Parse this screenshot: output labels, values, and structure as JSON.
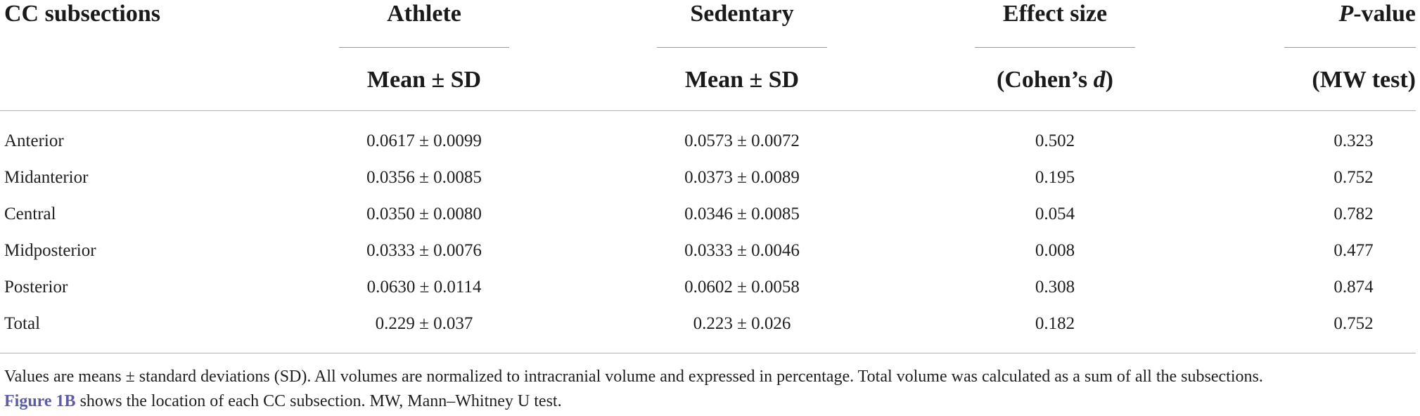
{
  "table": {
    "stub_header": "CC subsections",
    "columns": [
      {
        "top": "Athlete",
        "sub": "Mean ± SD"
      },
      {
        "top": "Sedentary",
        "sub": "Mean ± SD"
      },
      {
        "top": "Effect size",
        "sub_prefix": "(Cohen’s ",
        "sub_italic": "d",
        "sub_suffix": ")"
      },
      {
        "top_italic": "P",
        "top_suffix": "-value",
        "sub": "(MW test)"
      }
    ],
    "rows": [
      {
        "label": "Anterior",
        "athlete": "0.0617 ± 0.0099",
        "sedentary": "0.0573 ± 0.0072",
        "effect": "0.502",
        "p": "0.323"
      },
      {
        "label": "Midanterior",
        "athlete": "0.0356 ± 0.0085",
        "sedentary": "0.0373 ± 0.0089",
        "effect": "0.195",
        "p": "0.752"
      },
      {
        "label": "Central",
        "athlete": "0.0350 ± 0.0080",
        "sedentary": "0.0346 ± 0.0085",
        "effect": "0.054",
        "p": "0.782"
      },
      {
        "label": "Midposterior",
        "athlete": "0.0333 ± 0.0076",
        "sedentary": "0.0333 ± 0.0046",
        "effect": "0.008",
        "p": "0.477"
      },
      {
        "label": "Posterior",
        "athlete": "0.0630 ± 0.0114",
        "sedentary": "0.0602 ± 0.0058",
        "effect": "0.308",
        "p": "0.874"
      },
      {
        "label": "Total",
        "athlete": "0.229 ± 0.037",
        "sedentary": "0.223 ± 0.026",
        "effect": "0.182",
        "p": "0.752"
      }
    ]
  },
  "footnote": {
    "line1": "Values are means ± standard deviations (SD). All volumes are normalized to intracranial volume and expressed in percentage. Total volume was calculated as a sum of all the subsections.",
    "link_text": "Figure 1B",
    "line2_rest": " shows the location of each CC subsection. MW, Mann–Whitney U test."
  },
  "colors": {
    "text": "#1a1a1a",
    "rule": "#b4b4b4",
    "link": "#5b5ea6"
  }
}
